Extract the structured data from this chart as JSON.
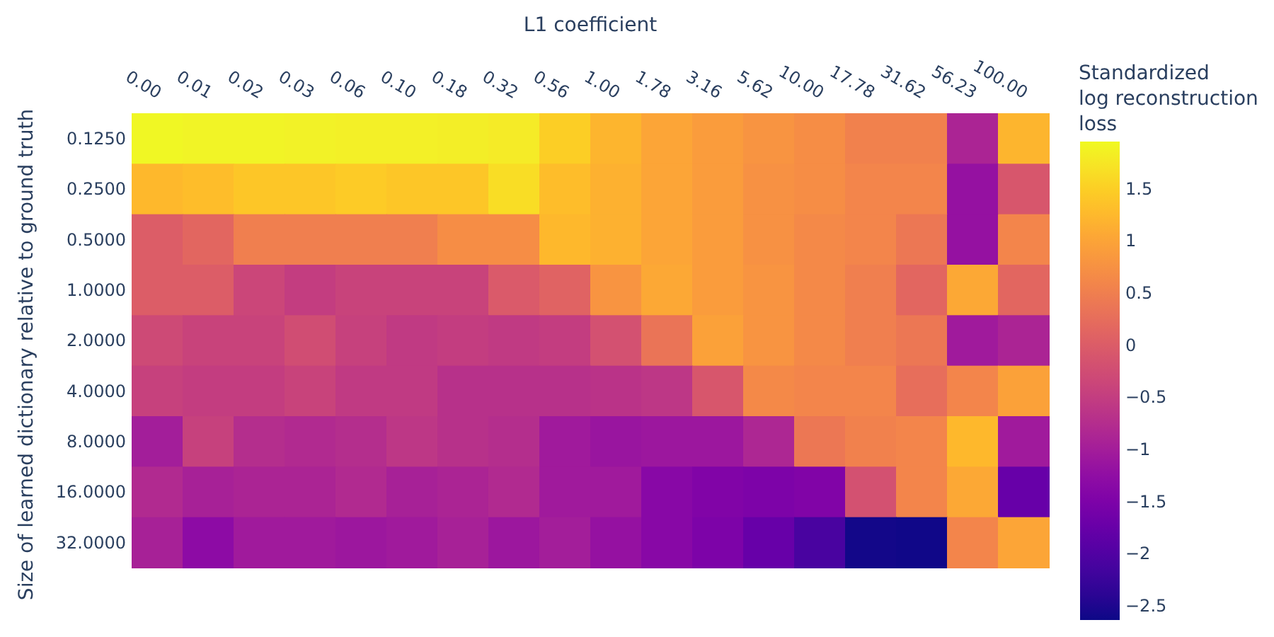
{
  "chart_data": {
    "type": "heatmap",
    "xlabel": "L1 coefficient",
    "ylabel": "Size of learned dictionary relative to ground truth",
    "clabel": "Standardized\nlog reconstruction\nloss",
    "categories": [
      "0.00",
      "0.01",
      "0.02",
      "0.03",
      "0.06",
      "0.10",
      "0.18",
      "0.32",
      "0.56",
      "1.00",
      "1.78",
      "3.16",
      "5.62",
      "10.00",
      "17.78",
      "31.62",
      "56.23",
      "100.00"
    ],
    "y_categories": [
      "0.1250",
      "0.2500",
      "0.5000",
      "1.0000",
      "2.0000",
      "4.0000",
      "8.0000",
      "16.0000",
      "32.0000"
    ],
    "cells": [
      [
        1.92,
        1.88,
        1.88,
        1.87,
        1.85,
        1.86,
        1.84,
        1.8,
        1.5,
        1.2,
        1.0,
        0.9,
        0.8,
        0.7,
        0.55,
        0.55,
        -0.9,
        1.2
      ],
      [
        1.25,
        1.3,
        1.4,
        1.4,
        1.45,
        1.4,
        1.4,
        1.65,
        1.3,
        1.15,
        1.0,
        0.9,
        0.75,
        0.7,
        0.6,
        0.6,
        -1.2,
        -0.1
      ],
      [
        0.0,
        0.15,
        0.5,
        0.5,
        0.5,
        0.5,
        0.7,
        0.7,
        1.25,
        1.15,
        1.0,
        0.9,
        0.75,
        0.65,
        0.6,
        0.4,
        -1.2,
        0.6
      ],
      [
        0.0,
        0.0,
        -0.35,
        -0.5,
        -0.4,
        -0.4,
        -0.4,
        -0.05,
        0.1,
        0.8,
        1.05,
        0.9,
        0.8,
        0.65,
        0.5,
        0.15,
        1.05,
        0.15
      ],
      [
        -0.3,
        -0.4,
        -0.4,
        -0.25,
        -0.45,
        -0.55,
        -0.5,
        -0.55,
        -0.5,
        -0.2,
        0.35,
        0.95,
        0.8,
        0.65,
        0.5,
        0.4,
        -1.05,
        -0.9
      ],
      [
        -0.45,
        -0.5,
        -0.5,
        -0.4,
        -0.55,
        -0.55,
        -0.7,
        -0.7,
        -0.7,
        -0.65,
        -0.6,
        -0.1,
        0.65,
        0.6,
        0.6,
        0.25,
        0.6,
        0.95
      ],
      [
        -1.0,
        -0.45,
        -0.75,
        -0.8,
        -0.75,
        -0.6,
        -0.7,
        -0.75,
        -1.05,
        -1.15,
        -1.1,
        -1.1,
        -0.85,
        0.4,
        0.55,
        0.6,
        1.25,
        -1.05
      ],
      [
        -0.8,
        -0.95,
        -0.9,
        -0.9,
        -0.8,
        -0.95,
        -0.9,
        -0.8,
        -1.05,
        -1.05,
        -1.35,
        -1.45,
        -1.5,
        -1.45,
        -0.2,
        0.6,
        1.05,
        -1.75
      ],
      [
        -0.95,
        -1.3,
        -1.05,
        -1.05,
        -1.1,
        -1.05,
        -0.95,
        -1.1,
        -1.0,
        -1.2,
        -1.35,
        -1.5,
        -1.75,
        -2.1,
        -2.6,
        -2.62,
        0.6,
        1.0
      ]
    ],
    "clim": [
      -2.64,
      1.95
    ],
    "cticks": [
      -2.5,
      -2,
      -1.5,
      -1,
      -0.5,
      0,
      0.5,
      1,
      1.5
    ]
  }
}
